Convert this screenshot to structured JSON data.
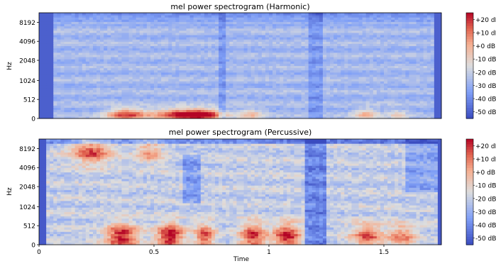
{
  "chart_data": [
    {
      "type": "heatmap",
      "title": "mel power spectrogram (Harmonic)",
      "ylabel": "Hz",
      "xlabel": "",
      "y_ticks": [
        "0",
        "512",
        "1024",
        "2048",
        "4096",
        "8192"
      ],
      "x_ticks": [],
      "x_range_seconds": [
        0,
        1.75
      ],
      "colorbar": {
        "ticks": [
          "+20 dB",
          "+10 dB",
          "+0 dB",
          "-10 dB",
          "-20 dB",
          "-30 dB",
          "-40 dB",
          "-50 dB"
        ],
        "range_db": [
          -55,
          25
        ],
        "colormap": "coolwarm"
      },
      "notes": "Energy mostly low (blue, about -40 dB) with warm bands below 512 Hz between 0.3-0.8 s and 1.35-1.6 s."
    },
    {
      "type": "heatmap",
      "title": "mel power spectrogram (Percussive)",
      "ylabel": "Hz",
      "xlabel": "Time",
      "y_ticks": [
        "0",
        "512",
        "1024",
        "2048",
        "4096",
        "8192"
      ],
      "x_ticks": [
        "0",
        "0.5",
        "1",
        "1.5"
      ],
      "x_range_seconds": [
        0,
        1.75
      ],
      "colorbar": {
        "ticks": [
          "+20 dB",
          "+10 dB",
          "+0 dB",
          "-10 dB",
          "-20 dB",
          "-30 dB",
          "-40 dB",
          "-50 dB"
        ],
        "range_db": [
          -55,
          25
        ],
        "colormap": "coolwarm"
      },
      "notes": "Broadband energy; strong red regions around 0.3-0.4 s, 0.55-0.62 s, 0.9-1.1 s in low frequencies and 0.2-0.45 s near 4096-8192 Hz."
    }
  ]
}
